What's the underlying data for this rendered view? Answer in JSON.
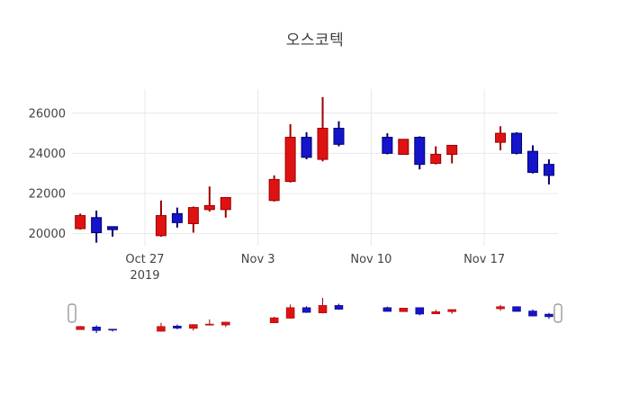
{
  "chart_data": {
    "type": "candlestick",
    "title": "오스코텍",
    "x_axis": {
      "ticks": [
        {
          "date": "2019-10-27",
          "label": "Oct 27",
          "sublabel": "2019"
        },
        {
          "date": "2019-11-03",
          "label": "Nov 3"
        },
        {
          "date": "2019-11-10",
          "label": "Nov 10"
        },
        {
          "date": "2019-11-17",
          "label": "Nov 17"
        }
      ]
    },
    "y_axis": {
      "ticks": [
        20000,
        22000,
        24000,
        26000
      ],
      "range": [
        19400,
        27200
      ]
    },
    "candles": [
      {
        "date": "2019-10-23",
        "open": 20250,
        "high": 21000,
        "low": 20200,
        "close": 20900
      },
      {
        "date": "2019-10-24",
        "open": 20800,
        "high": 21150,
        "low": 19550,
        "close": 20050
      },
      {
        "date": "2019-10-25",
        "open": 20350,
        "high": 20350,
        "low": 19850,
        "close": 20200
      },
      {
        "date": "2019-10-28",
        "open": 19900,
        "high": 21650,
        "low": 19850,
        "close": 20900
      },
      {
        "date": "2019-10-29",
        "open": 21000,
        "high": 21300,
        "low": 20300,
        "close": 20550
      },
      {
        "date": "2019-10-30",
        "open": 20500,
        "high": 21350,
        "low": 20050,
        "close": 21300
      },
      {
        "date": "2019-10-31",
        "open": 21200,
        "high": 22350,
        "low": 21100,
        "close": 21400
      },
      {
        "date": "2019-11-01",
        "open": 21200,
        "high": 21800,
        "low": 20800,
        "close": 21800
      },
      {
        "date": "2019-11-04",
        "open": 21650,
        "high": 22900,
        "low": 21600,
        "close": 22700
      },
      {
        "date": "2019-11-05",
        "open": 22600,
        "high": 25450,
        "low": 22550,
        "close": 24800
      },
      {
        "date": "2019-11-06",
        "open": 24800,
        "high": 25050,
        "low": 23700,
        "close": 23800
      },
      {
        "date": "2019-11-07",
        "open": 23700,
        "high": 26800,
        "low": 23600,
        "close": 25250
      },
      {
        "date": "2019-11-08",
        "open": 25250,
        "high": 25600,
        "low": 24350,
        "close": 24450
      },
      {
        "date": "2019-11-11",
        "open": 24800,
        "high": 25000,
        "low": 23950,
        "close": 24000
      },
      {
        "date": "2019-11-12",
        "open": 23950,
        "high": 24700,
        "low": 23950,
        "close": 24700
      },
      {
        "date": "2019-11-13",
        "open": 24800,
        "high": 24850,
        "low": 23200,
        "close": 23450
      },
      {
        "date": "2019-11-14",
        "open": 23500,
        "high": 24350,
        "low": 23450,
        "close": 23950
      },
      {
        "date": "2019-11-15",
        "open": 23950,
        "high": 24400,
        "low": 23500,
        "close": 24400
      },
      {
        "date": "2019-11-18",
        "open": 24550,
        "high": 25350,
        "low": 24150,
        "close": 25000
      },
      {
        "date": "2019-11-19",
        "open": 25000,
        "high": 25050,
        "low": 23950,
        "close": 24000
      },
      {
        "date": "2019-11-20",
        "open": 24100,
        "high": 24400,
        "low": 23000,
        "close": 23050
      },
      {
        "date": "2019-11-21",
        "open": 23450,
        "high": 23700,
        "low": 22450,
        "close": 22900
      }
    ],
    "colors": {
      "increasing_fill": "#df1212",
      "increasing_line": "#9c0000",
      "decreasing_fill": "#1414cb",
      "decreasing_line": "#000070",
      "grid": "#e8e8e8",
      "tick_text": "#444444",
      "handle_border": "#8a8a8a"
    },
    "rangeslider": {
      "present": true
    },
    "legend": {
      "visible": false
    }
  }
}
